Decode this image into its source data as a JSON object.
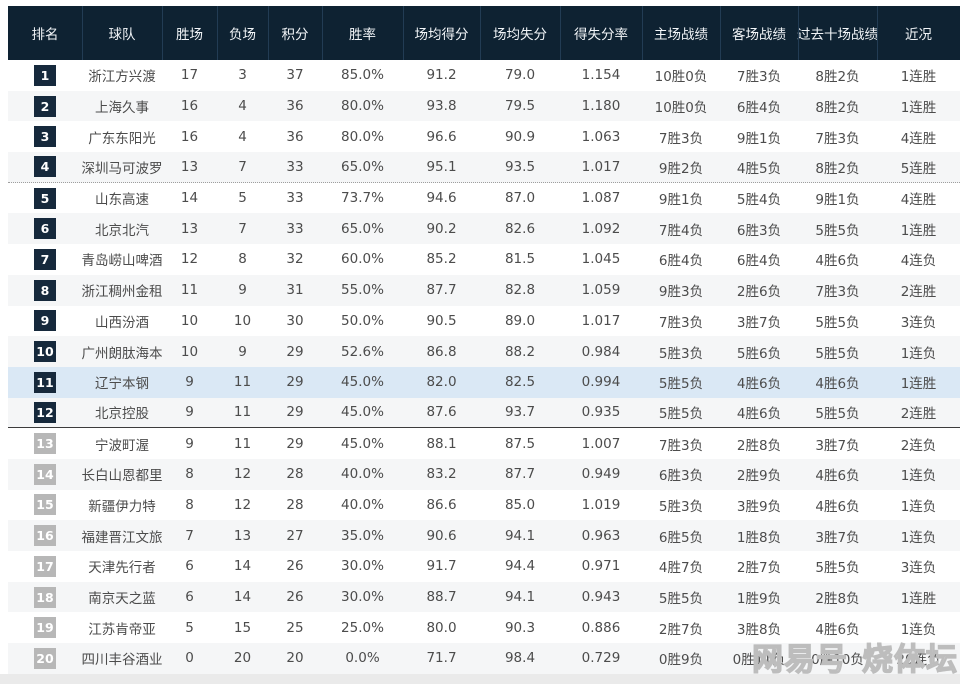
{
  "chart_data": {
    "type": "table",
    "columns": [
      {
        "key": "rank",
        "label": "排名"
      },
      {
        "key": "team",
        "label": "球队"
      },
      {
        "key": "wins",
        "label": "胜场"
      },
      {
        "key": "losses",
        "label": "负场"
      },
      {
        "key": "points",
        "label": "积分"
      },
      {
        "key": "win_rate",
        "label": "胜率"
      },
      {
        "key": "avg_points_for",
        "label": "场均得分"
      },
      {
        "key": "avg_points_against",
        "label": "场均失分"
      },
      {
        "key": "score_ratio",
        "label": "得失分率"
      },
      {
        "key": "home_record",
        "label": "主场战绩"
      },
      {
        "key": "away_record",
        "label": "客场战绩"
      },
      {
        "key": "last10_record",
        "label": "过去十场战绩"
      },
      {
        "key": "streak",
        "label": "近况"
      }
    ],
    "rows": [
      {
        "rank": 1,
        "team": "浙江方兴渡",
        "wins": 17,
        "losses": 3,
        "points": 37,
        "win_rate": "85.0%",
        "avg_points_for": "91.2",
        "avg_points_against": "79.0",
        "score_ratio": "1.154",
        "home_record": "10胜0负",
        "away_record": "7胜3负",
        "last10_record": "8胜2负",
        "streak": "1连胜"
      },
      {
        "rank": 2,
        "team": "上海久事",
        "wins": 16,
        "losses": 4,
        "points": 36,
        "win_rate": "80.0%",
        "avg_points_for": "93.8",
        "avg_points_against": "79.5",
        "score_ratio": "1.180",
        "home_record": "10胜0负",
        "away_record": "6胜4负",
        "last10_record": "8胜2负",
        "streak": "1连胜"
      },
      {
        "rank": 3,
        "team": "广东东阳光",
        "wins": 16,
        "losses": 4,
        "points": 36,
        "win_rate": "80.0%",
        "avg_points_for": "96.6",
        "avg_points_against": "90.9",
        "score_ratio": "1.063",
        "home_record": "7胜3负",
        "away_record": "9胜1负",
        "last10_record": "7胜3负",
        "streak": "4连胜"
      },
      {
        "rank": 4,
        "team": "深圳马可波罗",
        "wins": 13,
        "losses": 7,
        "points": 33,
        "win_rate": "65.0%",
        "avg_points_for": "95.1",
        "avg_points_against": "93.5",
        "score_ratio": "1.017",
        "home_record": "9胜2负",
        "away_record": "4胜5负",
        "last10_record": "8胜2负",
        "streak": "5连胜"
      },
      {
        "rank": 5,
        "team": "山东高速",
        "wins": 14,
        "losses": 5,
        "points": 33,
        "win_rate": "73.7%",
        "avg_points_for": "94.6",
        "avg_points_against": "87.0",
        "score_ratio": "1.087",
        "home_record": "9胜1负",
        "away_record": "5胜4负",
        "last10_record": "9胜1负",
        "streak": "4连胜"
      },
      {
        "rank": 6,
        "team": "北京北汽",
        "wins": 13,
        "losses": 7,
        "points": 33,
        "win_rate": "65.0%",
        "avg_points_for": "90.2",
        "avg_points_against": "82.6",
        "score_ratio": "1.092",
        "home_record": "7胜4负",
        "away_record": "6胜3负",
        "last10_record": "5胜5负",
        "streak": "1连胜"
      },
      {
        "rank": 7,
        "team": "青岛崂山啤酒",
        "wins": 12,
        "losses": 8,
        "points": 32,
        "win_rate": "60.0%",
        "avg_points_for": "85.2",
        "avg_points_against": "81.5",
        "score_ratio": "1.045",
        "home_record": "6胜4负",
        "away_record": "6胜4负",
        "last10_record": "4胜6负",
        "streak": "4连负"
      },
      {
        "rank": 8,
        "team": "浙江稠州金租",
        "wins": 11,
        "losses": 9,
        "points": 31,
        "win_rate": "55.0%",
        "avg_points_for": "87.7",
        "avg_points_against": "82.8",
        "score_ratio": "1.059",
        "home_record": "9胜3负",
        "away_record": "2胜6负",
        "last10_record": "7胜3负",
        "streak": "2连胜"
      },
      {
        "rank": 9,
        "team": "山西汾酒",
        "wins": 10,
        "losses": 10,
        "points": 30,
        "win_rate": "50.0%",
        "avg_points_for": "90.5",
        "avg_points_against": "89.0",
        "score_ratio": "1.017",
        "home_record": "7胜3负",
        "away_record": "3胜7负",
        "last10_record": "5胜5负",
        "streak": "3连负"
      },
      {
        "rank": 10,
        "team": "广州朗肽海本",
        "wins": 10,
        "losses": 9,
        "points": 29,
        "win_rate": "52.6%",
        "avg_points_for": "86.8",
        "avg_points_against": "88.2",
        "score_ratio": "0.984",
        "home_record": "5胜3负",
        "away_record": "5胜6负",
        "last10_record": "5胜5负",
        "streak": "1连负"
      },
      {
        "rank": 11,
        "team": "辽宁本钢",
        "wins": 9,
        "losses": 11,
        "points": 29,
        "win_rate": "45.0%",
        "avg_points_for": "82.0",
        "avg_points_against": "82.5",
        "score_ratio": "0.994",
        "home_record": "5胜5负",
        "away_record": "4胜6负",
        "last10_record": "4胜6负",
        "streak": "1连胜"
      },
      {
        "rank": 12,
        "team": "北京控股",
        "wins": 9,
        "losses": 11,
        "points": 29,
        "win_rate": "45.0%",
        "avg_points_for": "87.6",
        "avg_points_against": "93.7",
        "score_ratio": "0.935",
        "home_record": "5胜5负",
        "away_record": "4胜6负",
        "last10_record": "5胜5负",
        "streak": "2连胜"
      },
      {
        "rank": 13,
        "team": "宁波町渥",
        "wins": 9,
        "losses": 11,
        "points": 29,
        "win_rate": "45.0%",
        "avg_points_for": "88.1",
        "avg_points_against": "87.5",
        "score_ratio": "1.007",
        "home_record": "7胜3负",
        "away_record": "2胜8负",
        "last10_record": "3胜7负",
        "streak": "2连负"
      },
      {
        "rank": 14,
        "team": "长白山恩都里",
        "wins": 8,
        "losses": 12,
        "points": 28,
        "win_rate": "40.0%",
        "avg_points_for": "83.2",
        "avg_points_against": "87.7",
        "score_ratio": "0.949",
        "home_record": "6胜3负",
        "away_record": "2胜9负",
        "last10_record": "4胜6负",
        "streak": "1连负"
      },
      {
        "rank": 15,
        "team": "新疆伊力特",
        "wins": 8,
        "losses": 12,
        "points": 28,
        "win_rate": "40.0%",
        "avg_points_for": "86.6",
        "avg_points_against": "85.0",
        "score_ratio": "1.019",
        "home_record": "5胜3负",
        "away_record": "3胜9负",
        "last10_record": "4胜6负",
        "streak": "1连负"
      },
      {
        "rank": 16,
        "team": "福建晋江文旅",
        "wins": 7,
        "losses": 13,
        "points": 27,
        "win_rate": "35.0%",
        "avg_points_for": "90.6",
        "avg_points_against": "94.1",
        "score_ratio": "0.963",
        "home_record": "6胜5负",
        "away_record": "1胜8负",
        "last10_record": "3胜7负",
        "streak": "1连负"
      },
      {
        "rank": 17,
        "team": "天津先行者",
        "wins": 6,
        "losses": 14,
        "points": 26,
        "win_rate": "30.0%",
        "avg_points_for": "91.7",
        "avg_points_against": "94.4",
        "score_ratio": "0.971",
        "home_record": "4胜7负",
        "away_record": "2胜7负",
        "last10_record": "5胜5负",
        "streak": "3连负"
      },
      {
        "rank": 18,
        "team": "南京天之蓝",
        "wins": 6,
        "losses": 14,
        "points": 26,
        "win_rate": "30.0%",
        "avg_points_for": "88.7",
        "avg_points_against": "94.1",
        "score_ratio": "0.943",
        "home_record": "5胜5负",
        "away_record": "1胜9负",
        "last10_record": "2胜8负",
        "streak": "1连胜"
      },
      {
        "rank": 19,
        "team": "江苏肯帝亚",
        "wins": 5,
        "losses": 15,
        "points": 25,
        "win_rate": "25.0%",
        "avg_points_for": "80.0",
        "avg_points_against": "90.3",
        "score_ratio": "0.886",
        "home_record": "2胜7负",
        "away_record": "3胜8负",
        "last10_record": "4胜6负",
        "streak": "1连负"
      },
      {
        "rank": 20,
        "team": "四川丰谷酒业",
        "wins": 0,
        "losses": 20,
        "points": 20,
        "win_rate": "0.0%",
        "avg_points_for": "71.7",
        "avg_points_against": "98.4",
        "score_ratio": "0.729",
        "home_record": "0胜9负",
        "away_record": "0胜11负",
        "last10_record": "0胜10负",
        "streak": "20连负"
      }
    ]
  },
  "layout_flags": {
    "dotted_separator_after_rank": 4,
    "solid_separator_after_rank": 12,
    "highlighted_rank": 11,
    "gray_badge_from_rank": 13
  },
  "watermark": {
    "part1": "网易号",
    "part2": "烧体坛"
  },
  "colors": {
    "header_bg": "#0E2232",
    "header_divider": "#223C54",
    "header_text": "#F2F5F8",
    "badge_dark": "#16293C",
    "badge_gray": "#B7B7B7",
    "row_alt_bg": "#F5F6F7",
    "highlight_row_bg": "#DAE8F5",
    "cell_text": "#4C4C4C",
    "dotted_line": "#9E9E9E",
    "solid_line": "#3C3C3C",
    "bottom_strip": "#EAEAEA"
  }
}
